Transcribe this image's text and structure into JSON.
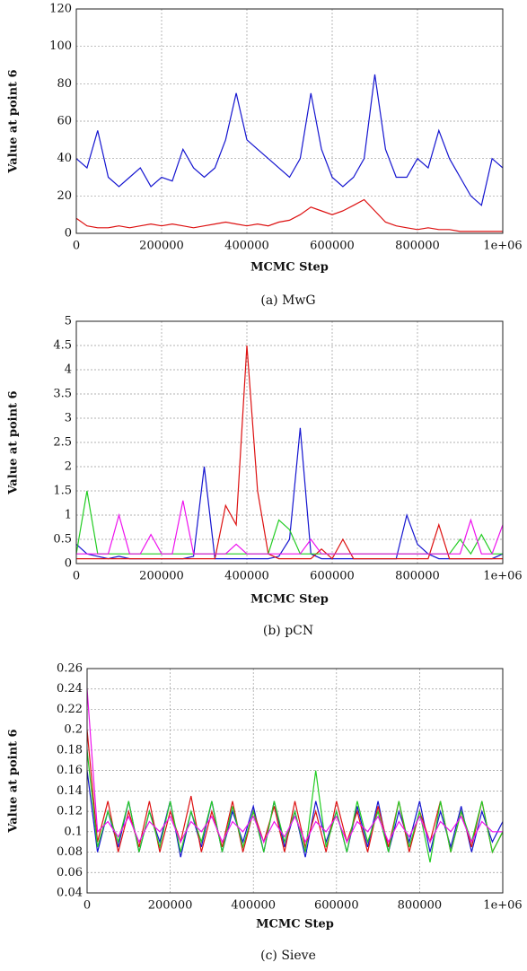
{
  "chart_data": [
    {
      "type": "line",
      "caption": "(a) MwG",
      "x_label": "MCMC Step",
      "y_label": "Value at point 6",
      "x": [
        0,
        25000,
        50000,
        75000,
        100000,
        125000,
        150000,
        175000,
        200000,
        225000,
        250000,
        275000,
        300000,
        325000,
        350000,
        375000,
        400000,
        425000,
        450000,
        475000,
        500000,
        525000,
        550000,
        575000,
        600000,
        625000,
        650000,
        675000,
        700000,
        725000,
        750000,
        775000,
        800000,
        825000,
        850000,
        875000,
        900000,
        925000,
        950000,
        975000,
        1000000
      ],
      "series": [
        {
          "color": "#1515d0",
          "values": [
            40,
            35,
            55,
            30,
            25,
            30,
            35,
            25,
            30,
            28,
            45,
            35,
            30,
            35,
            50,
            75,
            50,
            45,
            40,
            35,
            30,
            40,
            75,
            45,
            30,
            25,
            30,
            40,
            85,
            45,
            30,
            30,
            40,
            35,
            55,
            40,
            30,
            20,
            15,
            40,
            35
          ]
        },
        {
          "color": "#dd1111",
          "values": [
            8,
            4,
            3,
            3,
            4,
            3,
            4,
            5,
            4,
            5,
            4,
            3,
            4,
            5,
            6,
            5,
            4,
            5,
            4,
            6,
            7,
            10,
            14,
            12,
            10,
            12,
            15,
            18,
            12,
            6,
            4,
            3,
            2,
            3,
            2,
            2,
            1,
            1,
            1,
            1,
            1
          ]
        }
      ],
      "xlim": [
        0,
        1000000
      ],
      "xticks": [
        0,
        200000,
        400000,
        600000,
        800000,
        {
          "value": 1000000,
          "label": "1e+06"
        }
      ],
      "ylim": [
        0,
        120
      ],
      "yticks": [
        0,
        20,
        40,
        60,
        80,
        100,
        120
      ],
      "grid": true
    },
    {
      "type": "line",
      "caption": "(b) pCN",
      "x_label": "MCMC Step",
      "y_label": "Value at point 6",
      "x": [
        0,
        25000,
        50000,
        75000,
        100000,
        125000,
        150000,
        175000,
        200000,
        225000,
        250000,
        275000,
        300000,
        325000,
        350000,
        375000,
        400000,
        425000,
        450000,
        475000,
        500000,
        525000,
        550000,
        575000,
        600000,
        625000,
        650000,
        675000,
        700000,
        725000,
        750000,
        775000,
        800000,
        825000,
        850000,
        875000,
        900000,
        925000,
        950000,
        975000,
        1000000
      ],
      "series": [
        {
          "color": "#1515d0",
          "values": [
            0.4,
            0.2,
            0.15,
            0.1,
            0.15,
            0.1,
            0.1,
            0.1,
            0.1,
            0.1,
            0.1,
            0.15,
            2.0,
            0.1,
            0.1,
            0.1,
            0.1,
            0.1,
            0.1,
            0.15,
            0.5,
            2.8,
            0.2,
            0.1,
            0.1,
            0.1,
            0.1,
            0.1,
            0.1,
            0.1,
            0.1,
            1.0,
            0.4,
            0.2,
            0.1,
            0.1,
            0.1,
            0.1,
            0.1,
            0.1,
            0.2
          ]
        },
        {
          "color": "#dd1111",
          "values": [
            0.1,
            0.1,
            0.1,
            0.1,
            0.1,
            0.1,
            0.1,
            0.1,
            0.1,
            0.1,
            0.1,
            0.1,
            0.1,
            0.1,
            1.2,
            0.8,
            4.5,
            1.5,
            0.2,
            0.1,
            0.1,
            0.1,
            0.1,
            0.3,
            0.1,
            0.5,
            0.1,
            0.1,
            0.1,
            0.1,
            0.1,
            0.1,
            0.1,
            0.1,
            0.8,
            0.1,
            0.1,
            0.1,
            0.1,
            0.1,
            0.1
          ]
        },
        {
          "color": "#22cc22",
          "values": [
            0.2,
            1.5,
            0.2,
            0.2,
            0.2,
            0.2,
            0.2,
            0.2,
            0.2,
            0.2,
            0.2,
            0.2,
            0.2,
            0.2,
            0.2,
            0.2,
            0.2,
            0.2,
            0.2,
            0.9,
            0.7,
            0.2,
            0.2,
            0.2,
            0.2,
            0.2,
            0.2,
            0.2,
            0.2,
            0.2,
            0.2,
            0.2,
            0.2,
            0.2,
            0.2,
            0.2,
            0.5,
            0.2,
            0.6,
            0.2,
            0.2
          ]
        },
        {
          "color": "#ee11ee",
          "values": [
            0.2,
            0.2,
            0.2,
            0.2,
            1.0,
            0.2,
            0.2,
            0.6,
            0.2,
            0.2,
            1.3,
            0.2,
            0.2,
            0.2,
            0.2,
            0.4,
            0.2,
            0.2,
            0.2,
            0.2,
            0.2,
            0.2,
            0.5,
            0.2,
            0.2,
            0.2,
            0.2,
            0.2,
            0.2,
            0.2,
            0.2,
            0.2,
            0.2,
            0.2,
            0.2,
            0.2,
            0.2,
            0.9,
            0.2,
            0.2,
            0.8
          ]
        }
      ],
      "xlim": [
        0,
        1000000
      ],
      "xticks": [
        0,
        200000,
        400000,
        600000,
        800000,
        {
          "value": 1000000,
          "label": "1e+06"
        }
      ],
      "ylim": [
        0,
        5
      ],
      "yticks": [
        0,
        0.5,
        1,
        1.5,
        2,
        2.5,
        3,
        3.5,
        4,
        4.5,
        5
      ],
      "grid": true
    },
    {
      "type": "line",
      "caption": "(c) Sieve",
      "x_label": "MCMC Step",
      "y_label": "Value at point 6",
      "x": [
        0,
        25000,
        50000,
        75000,
        100000,
        125000,
        150000,
        175000,
        200000,
        225000,
        250000,
        275000,
        300000,
        325000,
        350000,
        375000,
        400000,
        425000,
        450000,
        475000,
        500000,
        525000,
        550000,
        575000,
        600000,
        625000,
        650000,
        675000,
        700000,
        725000,
        750000,
        775000,
        800000,
        825000,
        850000,
        875000,
        900000,
        925000,
        950000,
        975000,
        1000000
      ],
      "series": [
        {
          "color": "#1515d0",
          "values": [
            0.16,
            0.08,
            0.12,
            0.085,
            0.13,
            0.08,
            0.12,
            0.09,
            0.13,
            0.075,
            0.12,
            0.085,
            0.13,
            0.08,
            0.12,
            0.09,
            0.125,
            0.08,
            0.13,
            0.085,
            0.12,
            0.075,
            0.13,
            0.09,
            0.12,
            0.08,
            0.125,
            0.085,
            0.13,
            0.08,
            0.12,
            0.09,
            0.13,
            0.08,
            0.12,
            0.085,
            0.125,
            0.08,
            0.12,
            0.09,
            0.11
          ]
        },
        {
          "color": "#dd1111",
          "values": [
            0.2,
            0.09,
            0.13,
            0.08,
            0.12,
            0.085,
            0.13,
            0.08,
            0.12,
            0.09,
            0.135,
            0.08,
            0.12,
            0.085,
            0.13,
            0.08,
            0.12,
            0.09,
            0.125,
            0.08,
            0.13,
            0.085,
            0.12,
            0.08,
            0.13,
            0.09,
            0.12,
            0.08,
            0.125,
            0.085,
            0.13,
            0.08,
            0.12,
            0.09,
            0.13,
            0.08,
            0.12,
            0.085,
            0.13,
            0.08,
            0.1
          ]
        },
        {
          "color": "#22cc22",
          "values": [
            0.18,
            0.085,
            0.12,
            0.09,
            0.13,
            0.08,
            0.12,
            0.085,
            0.13,
            0.08,
            0.12,
            0.09,
            0.13,
            0.08,
            0.125,
            0.085,
            0.12,
            0.08,
            0.13,
            0.09,
            0.12,
            0.08,
            0.16,
            0.085,
            0.12,
            0.08,
            0.13,
            0.09,
            0.12,
            0.08,
            0.13,
            0.085,
            0.12,
            0.07,
            0.13,
            0.08,
            0.12,
            0.09,
            0.13,
            0.08,
            0.1
          ]
        },
        {
          "color": "#ee11ee",
          "values": [
            0.24,
            0.1,
            0.11,
            0.095,
            0.115,
            0.09,
            0.11,
            0.1,
            0.115,
            0.09,
            0.11,
            0.1,
            0.115,
            0.09,
            0.11,
            0.1,
            0.115,
            0.09,
            0.11,
            0.095,
            0.115,
            0.09,
            0.11,
            0.1,
            0.115,
            0.09,
            0.11,
            0.1,
            0.115,
            0.09,
            0.11,
            0.095,
            0.115,
            0.09,
            0.11,
            0.1,
            0.115,
            0.09,
            0.11,
            0.1,
            0.1
          ]
        }
      ],
      "xlim": [
        0,
        1000000
      ],
      "xticks": [
        0,
        200000,
        400000,
        600000,
        800000,
        {
          "value": 1000000,
          "label": "1e+06"
        }
      ],
      "ylim": [
        0.04,
        0.26
      ],
      "yticks": [
        0.04,
        0.06,
        0.08,
        0.1,
        0.12,
        0.14,
        0.16,
        0.18,
        0.2,
        0.22,
        0.24,
        0.26
      ],
      "grid": true
    }
  ]
}
